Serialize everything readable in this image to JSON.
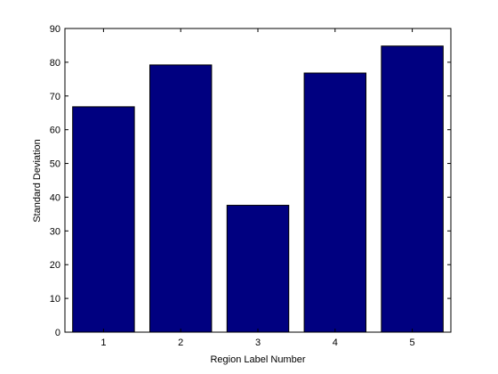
{
  "chart_data": {
    "type": "bar",
    "categories": [
      "1",
      "2",
      "3",
      "4",
      "5"
    ],
    "values": [
      66.8,
      79.2,
      37.6,
      76.8,
      84.8
    ],
    "xlabel": "Region Label Number",
    "ylabel": "Standard Deviation",
    "ylim": [
      0,
      90
    ],
    "yticks": [
      0,
      10,
      20,
      30,
      40,
      50,
      60,
      70,
      80,
      90
    ],
    "grid": false,
    "bar_color": "#000080",
    "bar_edge_color": "#000000"
  }
}
